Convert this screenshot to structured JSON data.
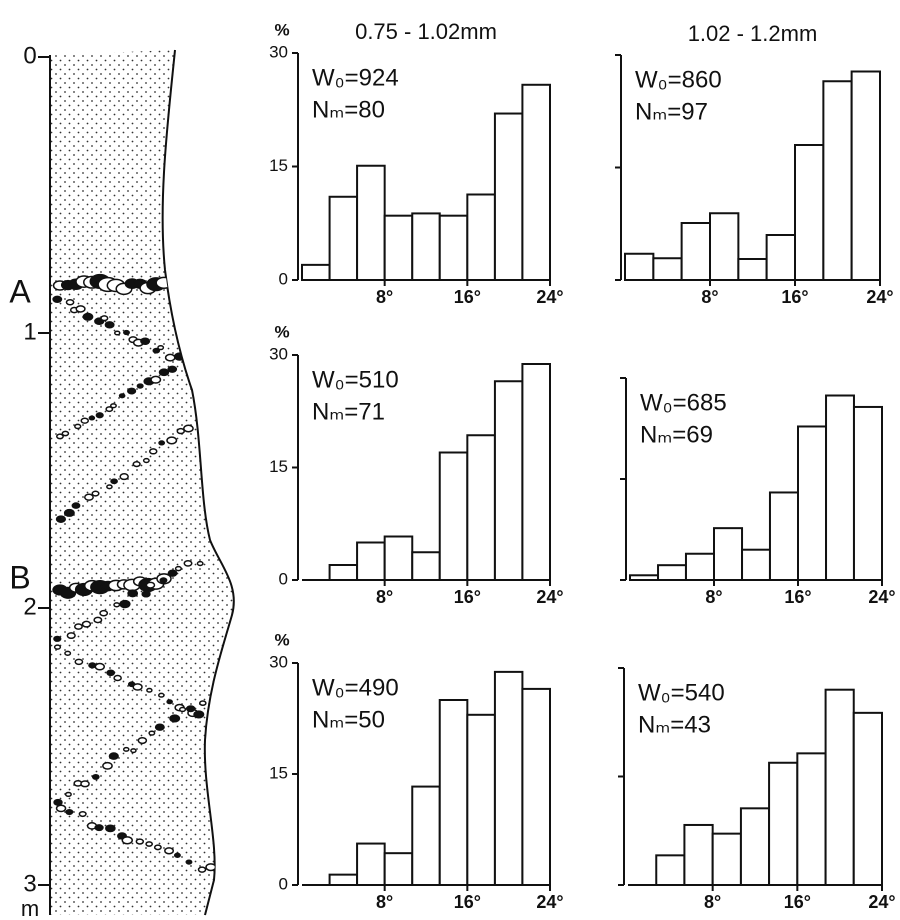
{
  "column": {
    "depth_labels": [
      "0",
      "1",
      "2",
      "3"
    ],
    "unit": "m",
    "markers": [
      "A",
      "B"
    ]
  },
  "chart_data": [
    {
      "type": "histogram",
      "title": "0.75 - 1.02mm",
      "ylabel": "%",
      "annotations": [
        "W₀=924",
        "Nₘ=80"
      ],
      "bins": [
        0,
        2.67,
        5.33,
        8,
        10.67,
        13.33,
        16,
        18.67,
        21.33,
        24
      ],
      "values": [
        2,
        11,
        15.1,
        8.5,
        8.8,
        8.5,
        11.3,
        22,
        25.8
      ],
      "xlim": [
        0,
        24
      ],
      "ylim": [
        0,
        30
      ],
      "xticks": [
        {
          "value": 8,
          "label": "8°"
        },
        {
          "value": 16,
          "label": "16°"
        },
        {
          "value": 24,
          "label": "24°"
        }
      ],
      "yticks": [
        0,
        15,
        30
      ],
      "ytick_labels": true,
      "color": "#ffffff"
    },
    {
      "type": "histogram",
      "title": "1.02 - 1.2mm",
      "annotations": [
        "W₀=860",
        "Nₘ=97"
      ],
      "bins": [
        0,
        2.67,
        5.33,
        8,
        10.67,
        13.33,
        16,
        18.67,
        21.33,
        24
      ],
      "values": [
        3.5,
        2.9,
        7.6,
        8.9,
        2.8,
        6,
        18,
        26.5,
        27.8
      ],
      "xlim": [
        0,
        24
      ],
      "ylim": [
        0,
        30
      ],
      "xticks": [
        {
          "value": 8,
          "label": "8°"
        },
        {
          "value": 16,
          "label": "16°"
        },
        {
          "value": 24,
          "label": "24°"
        }
      ],
      "yticks": [
        0,
        15,
        30
      ],
      "ytick_labels": false,
      "color": "#ffffff"
    },
    {
      "type": "histogram",
      "ylabel": "%",
      "annotations": [
        "W₀=510",
        "Nₘ=71"
      ],
      "bins": [
        0,
        2.67,
        5.33,
        8,
        10.67,
        13.33,
        16,
        18.67,
        21.33,
        24
      ],
      "values": [
        0,
        2,
        5,
        5.8,
        3.7,
        17,
        19.3,
        26.5,
        28.8
      ],
      "xlim": [
        0,
        24
      ],
      "ylim": [
        0,
        30
      ],
      "xticks": [
        {
          "value": 8,
          "label": "8°"
        },
        {
          "value": 16,
          "label": "16°"
        },
        {
          "value": 24,
          "label": "24°"
        }
      ],
      "yticks": [
        0,
        15,
        30
      ],
      "ytick_labels": true,
      "color": "#ffffff"
    },
    {
      "type": "histogram",
      "annotations": [
        "W₀=685",
        "Nₘ=69"
      ],
      "bins": [
        0,
        2.67,
        5.33,
        8,
        10.67,
        13.33,
        16,
        18.67,
        21.33,
        24
      ],
      "values": [
        0.7,
        2.2,
        3.9,
        7.7,
        4.5,
        13,
        22.8,
        27.4,
        25.7
      ],
      "xlim": [
        0,
        24
      ],
      "ylim": [
        0,
        30
      ],
      "xticks": [
        {
          "value": 8,
          "label": "8°"
        },
        {
          "value": 16,
          "label": "16°"
        },
        {
          "value": 24,
          "label": "24°"
        }
      ],
      "yticks": [
        0,
        15,
        30
      ],
      "ytick_labels": false,
      "color": "#ffffff"
    },
    {
      "type": "histogram",
      "ylabel": "%",
      "annotations": [
        "W₀=490",
        "Nₘ=50"
      ],
      "bins": [
        0,
        2.67,
        5.33,
        8,
        10.67,
        13.33,
        16,
        18.67,
        21.33,
        24
      ],
      "values": [
        0,
        1.4,
        5.6,
        4.3,
        13.3,
        25,
        23,
        28.8,
        26.5
      ],
      "xlim": [
        0,
        24
      ],
      "ylim": [
        0,
        30
      ],
      "xticks": [
        {
          "value": 8,
          "label": "8°"
        },
        {
          "value": 16,
          "label": "16°"
        },
        {
          "value": 24,
          "label": "24°"
        }
      ],
      "yticks": [
        0,
        15,
        30
      ],
      "ytick_labels": true,
      "color": "#ffffff"
    },
    {
      "type": "histogram",
      "annotations": [
        "W₀=540",
        "Nₘ=43"
      ],
      "bins": [
        0,
        2.67,
        5.33,
        8,
        10.67,
        13.33,
        16,
        18.67,
        21.33,
        24
      ],
      "values": [
        0,
        4.1,
        8.3,
        7.1,
        10.6,
        16.9,
        18.2,
        27,
        23.8
      ],
      "xlim": [
        0,
        24
      ],
      "ylim": [
        0,
        30
      ],
      "xticks": [
        {
          "value": 8,
          "label": "8°"
        },
        {
          "value": 16,
          "label": "16°"
        },
        {
          "value": 24,
          "label": "24°"
        }
      ],
      "yticks": [
        0,
        15,
        30
      ],
      "ytick_labels": false,
      "color": "#ffffff"
    }
  ]
}
